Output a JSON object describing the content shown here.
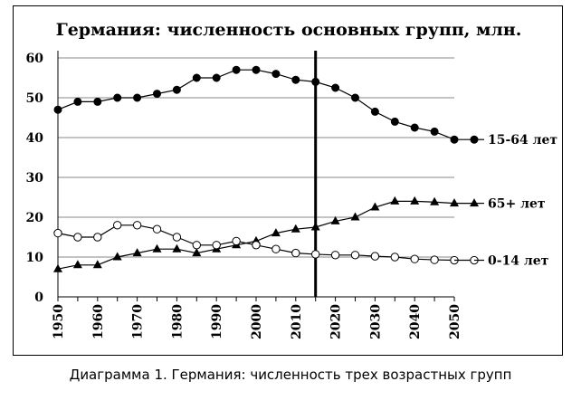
{
  "caption": "Диаграмма 1. Германия: численность трех возрастных групп",
  "chart_data": {
    "type": "line",
    "title": "Германия: численность основных групп, млн.",
    "xlabel": "",
    "ylabel": "",
    "x": [
      1950,
      1955,
      1960,
      1965,
      1970,
      1975,
      1980,
      1985,
      1990,
      1995,
      2000,
      2005,
      2010,
      2015,
      2020,
      2025,
      2030,
      2035,
      2040,
      2045,
      2050
    ],
    "xticks": [
      1950,
      1960,
      1970,
      1980,
      1990,
      2000,
      2010,
      2020,
      2030,
      2040,
      2050
    ],
    "yticks": [
      0,
      10,
      20,
      30,
      40,
      50,
      60
    ],
    "ylim": [
      0,
      60
    ],
    "xlim": [
      1950,
      2050
    ],
    "vertical_marker_x": 2015,
    "grid": true,
    "legend": "inline-right",
    "series": [
      {
        "name": "15-64 лет",
        "marker": "filled-circle",
        "values": [
          47,
          49,
          49,
          50,
          50,
          51,
          52,
          55,
          55,
          57,
          57,
          56,
          54.5,
          54,
          52.5,
          50,
          46.5,
          44,
          42.5,
          41.5,
          39.5
        ]
      },
      {
        "name": "65+ лет",
        "marker": "filled-triangle",
        "values": [
          7,
          8,
          8,
          10,
          11,
          12,
          12,
          11,
          12,
          13,
          14,
          16,
          17,
          17.5,
          19,
          20,
          22.5,
          24,
          24,
          23.8,
          23.5
        ]
      },
      {
        "name": "0-14 лет",
        "marker": "open-circle",
        "values": [
          16,
          15,
          15,
          18,
          18,
          17,
          15,
          13,
          13,
          14,
          13,
          12,
          11,
          10.7,
          10.5,
          10.5,
          10.2,
          10,
          9.5,
          9.3,
          9.2
        ]
      }
    ]
  }
}
